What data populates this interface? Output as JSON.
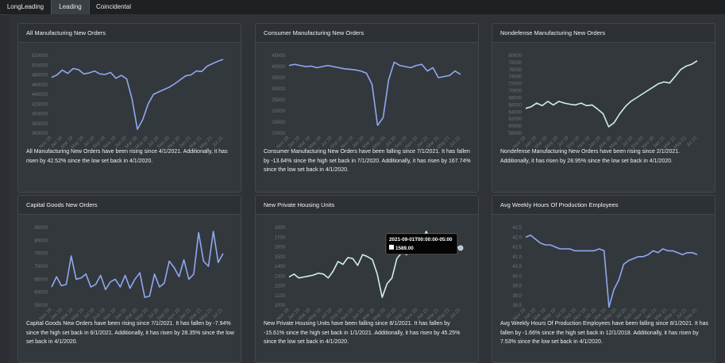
{
  "tabs": [
    "LongLeading",
    "Leading",
    "Coincidental"
  ],
  "active_tab": 1,
  "line_colors": {
    "blue": "#8fa8f0",
    "mint": "#cdf0e8"
  },
  "cards": [
    {
      "title": "All Manufacturing New Orders",
      "description": "All Manufacturing New Orders have been rising since 4/1/2021. Additionally, it has risen by 42.52% since the low set back in 4/1/2020.",
      "color": "#8fa8f0",
      "chart_data": {
        "type": "line",
        "ylim": [
          360000,
          520000
        ],
        "yticks": [
          "520000",
          "500000",
          "480000",
          "460000",
          "440000",
          "420000",
          "400000",
          "380000",
          "360000"
        ],
        "xticks": [
          "Nov 18",
          "Jan 19",
          "Mar 19",
          "May 19",
          "Jul 19",
          "Sep 19",
          "Nov 19",
          "Jan 20",
          "Mar 20",
          "May 20",
          "Jul 20",
          "Sep 20",
          "Nov 20",
          "Jan 21",
          "Mar 21",
          "May 21",
          "Jul 21"
        ],
        "values": [
          475000,
          480000,
          490000,
          483000,
          493000,
          491000,
          482000,
          484000,
          488000,
          482000,
          481000,
          485000,
          473000,
          479000,
          472000,
          430000,
          368000,
          388000,
          420000,
          440000,
          445000,
          450000,
          455000,
          462000,
          470000,
          478000,
          480000,
          488000,
          487000,
          498000,
          503000,
          508000,
          512000
        ]
      }
    },
    {
      "title": "Consumer Manufacturing New Orders",
      "description": "Consumer Manufacturing New Orders have been falling since 7/1/2021. It has fallen by -13.64% since the high set back in 7/1/2020. Additionally, it has risen by 167.74% since the low set back in 4/1/2020.",
      "color": "#8fa8f0",
      "chart_data": {
        "type": "line",
        "ylim": [
          10000,
          45000
        ],
        "yticks": [
          "45000",
          "40000",
          "35000",
          "30000",
          "25000",
          "20000",
          "15000",
          "10000"
        ],
        "xticks": [
          "Nov 18",
          "Jan 19",
          "Mar 19",
          "May 19",
          "Jul 19",
          "Sep 19",
          "Nov 19",
          "Jan 20",
          "Mar 20",
          "May 20",
          "Jul 20",
          "Sep 20",
          "Nov 20",
          "Jan 21",
          "Mar 21",
          "May 21",
          "Jul 21"
        ],
        "values": [
          40500,
          41000,
          40500,
          40000,
          40200,
          39500,
          40000,
          40500,
          40000,
          39500,
          39000,
          38800,
          38500,
          38000,
          37000,
          32000,
          13500,
          17000,
          34000,
          42000,
          40500,
          40000,
          39500,
          40500,
          41000,
          38000,
          39500,
          35000,
          35500,
          36000,
          38000,
          36500
        ]
      }
    },
    {
      "title": "Nondefense Manufacturing New Orders",
      "description": "Nondefense Manufacturing New Orders have been rising since 2/1/2021. Additionally, it has risen by 28.95% since the low set back in 4/1/2020.",
      "color": "#cdf0e8",
      "chart_data": {
        "type": "line",
        "ylim": [
          58000,
          80000
        ],
        "yticks": [
          "80000",
          "78000",
          "76000",
          "74000",
          "72000",
          "70000",
          "68000",
          "66000",
          "64000",
          "62000",
          "60000",
          "58000"
        ],
        "xticks": [
          "Nov 18",
          "Jan 19",
          "Mar 19",
          "May 19",
          "Jul 19",
          "Sep 19",
          "Nov 19",
          "Jan 20",
          "Mar 20",
          "May 20",
          "Jul 20",
          "Sep 20",
          "Nov 20",
          "Jan 21",
          "Mar 21",
          "May 21",
          "Jul 21"
        ],
        "values": [
          65000,
          65500,
          66500,
          65800,
          67000,
          66000,
          67000,
          66500,
          66200,
          66000,
          66500,
          65800,
          66000,
          64800,
          63500,
          59800,
          61000,
          63500,
          65500,
          67000,
          68000,
          69000,
          70000,
          71000,
          72000,
          72500,
          72200,
          74000,
          76000,
          77000,
          77500,
          78500
        ]
      }
    },
    {
      "title": "Capital Goods New Orders",
      "description": "Capital Goods New Orders have been rising since 7/1/2021. It has fallen by -7.94% since the high set back in 6/1/2021. Additionally, it has risen by 28.35% since the low set back in 4/1/2020.",
      "color": "#8fa8f0",
      "chart_data": {
        "type": "line",
        "ylim": [
          55000,
          85000
        ],
        "yticks": [
          "85000",
          "80000",
          "75000",
          "70000",
          "65000",
          "60000",
          "55000"
        ],
        "xticks": [
          "Nov 18",
          "Jan 19",
          "Mar 19",
          "May 19",
          "Jul 19",
          "Sep 19",
          "Nov 19",
          "Jan 20",
          "Mar 20",
          "May 20",
          "Jul 20",
          "Sep 20",
          "Nov 20",
          "Jan 21",
          "Mar 21",
          "May 21",
          "Jul 21"
        ],
        "values": [
          62000,
          66000,
          62500,
          63000,
          74000,
          65000,
          65500,
          67000,
          62000,
          63000,
          66500,
          61000,
          64000,
          65000,
          62000,
          66500,
          61500,
          65000,
          67500,
          58000,
          58500,
          67000,
          62000,
          63500,
          72000,
          69500,
          66000,
          72500,
          65000,
          67000,
          83000,
          72000,
          70000,
          83500,
          71500,
          75000
        ]
      }
    },
    {
      "title": "New Private Housing Units",
      "description": "New Private Housing Units have been falling since 8/1/2021. It has fallen by -15.61% since the high set back in 1/1/2021. Additionally, it has risen by 45.25% since the low set back in 4/1/2020.",
      "color": "#cdf0e8",
      "tooltip": {
        "date": "2021-09-01T00:00:00-05:00",
        "value": "1589.00"
      },
      "chart_data": {
        "type": "line",
        "ylim": [
          1000,
          1800
        ],
        "yticks": [
          "1800",
          "1700",
          "1600",
          "1500",
          "1400",
          "1300",
          "1200",
          "1100",
          "1000"
        ],
        "xticks": [
          "Nov 18",
          "Jan 19",
          "Mar 19",
          "May 19",
          "Jul 19",
          "Sep 19",
          "Nov 19",
          "Jan 20",
          "Mar 20",
          "May 20",
          "Jul 20",
          "Sep 20",
          "Nov 20",
          "Jan 21",
          "Mar 21",
          "May 21",
          "Jul 21"
        ],
        "values": [
          1290,
          1320,
          1280,
          1290,
          1300,
          1310,
          1330,
          1320,
          1280,
          1350,
          1450,
          1420,
          1490,
          1480,
          1410,
          1520,
          1500,
          1470,
          1320,
          1080,
          1220,
          1280,
          1480,
          1540,
          1520,
          1610,
          1580,
          1650,
          1760,
          1640,
          1680,
          1660,
          1610,
          1650,
          1600,
          1589
        ]
      }
    },
    {
      "title": "Avg Weekly Hours Of Production Employees",
      "description": "Avg Weekly Hours Of Production Employees have been falling since 8/1/2021. It has fallen by -1.66% since the high set back in 12/1/2018. Additionally, it has risen by 7.53% since the low set back in 4/1/2020.",
      "color": "#8fa8f0",
      "chart_data": {
        "type": "line",
        "ylim": [
          38.5,
          42.5
        ],
        "yticks": [
          "42.5",
          "42.0",
          "41.5",
          "41.0",
          "40.5",
          "40.0",
          "39.5",
          "39.0",
          "38.5"
        ],
        "xticks": [
          "Nov 18",
          "Jan 19",
          "Mar 19",
          "May 19",
          "Jul 19",
          "Sep 19",
          "Nov 19",
          "Jan 20",
          "Mar 20",
          "May 20",
          "Jul 20",
          "Sep 20",
          "Nov 20",
          "Jan 21",
          "Mar 21",
          "May 21",
          "Jul 21",
          "Sep 21"
        ],
        "values": [
          42.0,
          42.1,
          41.9,
          41.7,
          41.6,
          41.6,
          41.5,
          41.4,
          41.4,
          41.4,
          41.3,
          41.3,
          41.3,
          41.3,
          41.3,
          41.4,
          41.3,
          38.4,
          39.3,
          39.8,
          40.6,
          40.8,
          40.9,
          41.0,
          41.0,
          41.1,
          41.3,
          41.2,
          41.4,
          41.3,
          41.3,
          41.2,
          41.1,
          41.2,
          41.2,
          41.1
        ]
      }
    }
  ]
}
